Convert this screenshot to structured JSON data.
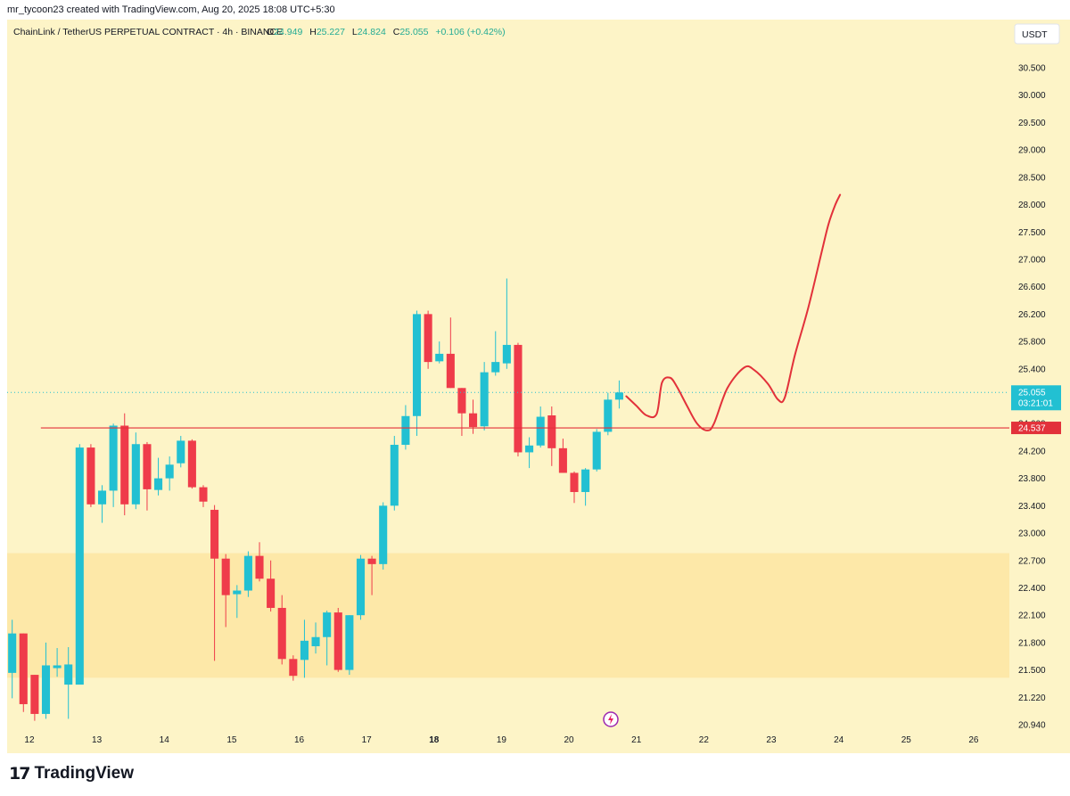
{
  "header": {
    "attribution": "mr_tycoon23 created with TradingView.com, Aug 20, 2025 18:08 UTC+5:30"
  },
  "legend": {
    "symbol": "ChainLink / TetherUS PERPETUAL CONTRACT · 4h · BINANCE",
    "o_label": "O",
    "o_value": "24.949",
    "h_label": "H",
    "h_value": "25.227",
    "l_label": "L",
    "l_value": "24.824",
    "c_label": "C",
    "c_value": "25.055",
    "change": "+0.106 (+0.42%)"
  },
  "currency_button": "USDT",
  "price_tags": {
    "last_price": "25.055",
    "countdown": "03:21:01",
    "level_price": "24.537",
    "hidden_label": "24.600"
  },
  "footer": {
    "logo_mark": "17",
    "brand": "TradingView"
  },
  "colors": {
    "background": "#fdf4c7",
    "zone": "#fde8a8",
    "up": "#22c0d2",
    "down": "#ef3b4a",
    "level_line": "#e2313a",
    "forecast": "#e2313a",
    "axis_text": "#131722",
    "legend_value": "#22ab94"
  },
  "chart_data": {
    "type": "candlestick",
    "title": "ChainLink / TetherUS PERPETUAL CONTRACT · 4h · BINANCE",
    "y_ticks": [
      "30.500",
      "30.000",
      "29.500",
      "29.000",
      "28.500",
      "28.000",
      "27.500",
      "27.000",
      "26.600",
      "26.200",
      "25.800",
      "25.400",
      "25.000",
      "24.600",
      "24.200",
      "23.800",
      "23.400",
      "23.000",
      "22.700",
      "22.400",
      "22.100",
      "21.800",
      "21.500",
      "21.220",
      "20.940"
    ],
    "x_ticks": [
      "12",
      "13",
      "14",
      "15",
      "16",
      "17",
      "18",
      "19",
      "20",
      "21",
      "22",
      "23",
      "24",
      "25",
      "26"
    ],
    "x_range": [
      11.67,
      26.53
    ],
    "candles_per_day": 6,
    "candles": [
      {
        "o": 21.47,
        "h": 22.05,
        "l": 21.21,
        "c": 21.9
      },
      {
        "o": 21.9,
        "h": 21.9,
        "l": 21.07,
        "c": 21.15
      },
      {
        "o": 21.45,
        "h": 21.45,
        "l": 20.98,
        "c": 21.05
      },
      {
        "o": 21.05,
        "h": 21.8,
        "l": 21.0,
        "c": 21.55
      },
      {
        "o": 21.52,
        "h": 21.74,
        "l": 21.43,
        "c": 21.55
      },
      {
        "o": 21.35,
        "h": 21.75,
        "l": 21.0,
        "c": 21.56
      },
      {
        "o": 21.35,
        "h": 24.3,
        "l": 21.35,
        "c": 24.25
      },
      {
        "o": 24.25,
        "h": 24.3,
        "l": 23.38,
        "c": 23.42
      },
      {
        "o": 23.42,
        "h": 23.7,
        "l": 23.15,
        "c": 23.62
      },
      {
        "o": 23.62,
        "h": 24.6,
        "l": 23.38,
        "c": 24.57
      },
      {
        "o": 24.57,
        "h": 24.75,
        "l": 23.26,
        "c": 23.42
      },
      {
        "o": 23.42,
        "h": 24.47,
        "l": 23.35,
        "c": 24.3
      },
      {
        "o": 24.3,
        "h": 24.33,
        "l": 23.33,
        "c": 23.64
      },
      {
        "o": 23.63,
        "h": 24.1,
        "l": 23.55,
        "c": 23.8
      },
      {
        "o": 23.8,
        "h": 24.12,
        "l": 23.62,
        "c": 24.0
      },
      {
        "o": 24.02,
        "h": 24.42,
        "l": 23.96,
        "c": 24.35
      },
      {
        "o": 24.35,
        "h": 24.37,
        "l": 23.65,
        "c": 23.67
      },
      {
        "o": 23.67,
        "h": 23.7,
        "l": 23.38,
        "c": 23.46
      },
      {
        "o": 23.34,
        "h": 23.41,
        "l": 21.6,
        "c": 22.72
      },
      {
        "o": 22.72,
        "h": 22.77,
        "l": 21.97,
        "c": 22.32
      },
      {
        "o": 22.33,
        "h": 22.43,
        "l": 22.07,
        "c": 22.37
      },
      {
        "o": 22.37,
        "h": 22.8,
        "l": 22.3,
        "c": 22.75
      },
      {
        "o": 22.75,
        "h": 22.9,
        "l": 22.47,
        "c": 22.5
      },
      {
        "o": 22.5,
        "h": 22.7,
        "l": 22.14,
        "c": 22.18
      },
      {
        "o": 22.18,
        "h": 22.32,
        "l": 21.56,
        "c": 21.62
      },
      {
        "o": 21.62,
        "h": 21.66,
        "l": 21.39,
        "c": 21.44
      },
      {
        "o": 21.61,
        "h": 22.05,
        "l": 21.42,
        "c": 21.82
      },
      {
        "o": 21.76,
        "h": 22.02,
        "l": 21.68,
        "c": 21.86
      },
      {
        "o": 21.86,
        "h": 22.15,
        "l": 21.55,
        "c": 22.13
      },
      {
        "o": 22.13,
        "h": 22.18,
        "l": 21.48,
        "c": 21.5
      },
      {
        "o": 21.5,
        "h": 22.1,
        "l": 21.45,
        "c": 22.1
      },
      {
        "o": 22.1,
        "h": 22.76,
        "l": 22.05,
        "c": 22.72
      },
      {
        "o": 22.72,
        "h": 22.75,
        "l": 22.32,
        "c": 22.66
      },
      {
        "o": 22.66,
        "h": 23.45,
        "l": 22.6,
        "c": 23.4
      },
      {
        "o": 23.4,
        "h": 24.42,
        "l": 23.33,
        "c": 24.29
      },
      {
        "o": 24.29,
        "h": 24.87,
        "l": 24.22,
        "c": 24.71
      },
      {
        "o": 24.71,
        "h": 26.25,
        "l": 24.42,
        "c": 26.2
      },
      {
        "o": 26.2,
        "h": 26.25,
        "l": 25.4,
        "c": 25.5
      },
      {
        "o": 25.51,
        "h": 25.8,
        "l": 25.48,
        "c": 25.62
      },
      {
        "o": 25.62,
        "h": 26.15,
        "l": 25.12,
        "c": 25.12
      },
      {
        "o": 25.12,
        "h": 25.12,
        "l": 24.42,
        "c": 24.75
      },
      {
        "o": 24.75,
        "h": 24.95,
        "l": 24.45,
        "c": 24.55
      },
      {
        "o": 24.56,
        "h": 25.5,
        "l": 24.5,
        "c": 25.35
      },
      {
        "o": 25.35,
        "h": 25.95,
        "l": 25.3,
        "c": 25.5
      },
      {
        "o": 25.48,
        "h": 26.72,
        "l": 25.4,
        "c": 25.75
      },
      {
        "o": 25.75,
        "h": 25.78,
        "l": 24.12,
        "c": 24.18
      },
      {
        "o": 24.18,
        "h": 24.4,
        "l": 23.95,
        "c": 24.28
      },
      {
        "o": 24.28,
        "h": 24.85,
        "l": 24.25,
        "c": 24.7
      },
      {
        "o": 24.72,
        "h": 24.85,
        "l": 23.98,
        "c": 24.24
      },
      {
        "o": 24.24,
        "h": 24.38,
        "l": 23.88,
        "c": 23.88
      },
      {
        "o": 23.88,
        "h": 23.9,
        "l": 23.44,
        "c": 23.6
      },
      {
        "o": 23.6,
        "h": 23.95,
        "l": 23.4,
        "c": 23.93
      },
      {
        "o": 23.93,
        "h": 24.52,
        "l": 23.9,
        "c": 24.48
      },
      {
        "o": 24.48,
        "h": 25.05,
        "l": 24.43,
        "c": 24.95
      },
      {
        "o": 24.95,
        "h": 25.23,
        "l": 24.82,
        "c": 25.055
      }
    ],
    "last_price": 25.055,
    "level": {
      "price": 24.537,
      "x_start": 12.17
    },
    "demand_zone": {
      "y_top": 22.78,
      "y_bottom": 21.42
    },
    "forecast_path": [
      {
        "x": 20.85,
        "y": 25.0
      },
      {
        "x": 21.0,
        "y": 24.86
      },
      {
        "x": 21.15,
        "y": 24.72
      },
      {
        "x": 21.3,
        "y": 24.74
      },
      {
        "x": 21.38,
        "y": 25.2
      },
      {
        "x": 21.5,
        "y": 25.27
      },
      {
        "x": 21.6,
        "y": 25.14
      },
      {
        "x": 21.75,
        "y": 24.86
      },
      {
        "x": 21.9,
        "y": 24.6
      },
      {
        "x": 22.05,
        "y": 24.5
      },
      {
        "x": 22.15,
        "y": 24.6
      },
      {
        "x": 22.35,
        "y": 25.12
      },
      {
        "x": 22.6,
        "y": 25.42
      },
      {
        "x": 22.75,
        "y": 25.38
      },
      {
        "x": 22.95,
        "y": 25.18
      },
      {
        "x": 23.1,
        "y": 24.95
      },
      {
        "x": 23.2,
        "y": 24.98
      },
      {
        "x": 23.35,
        "y": 25.6
      },
      {
        "x": 23.55,
        "y": 26.3
      },
      {
        "x": 23.75,
        "y": 27.15
      },
      {
        "x": 23.85,
        "y": 27.65
      },
      {
        "x": 23.95,
        "y": 28.0
      },
      {
        "x": 24.02,
        "y": 28.18
      }
    ],
    "grid": false,
    "legend_position": "top-left"
  }
}
